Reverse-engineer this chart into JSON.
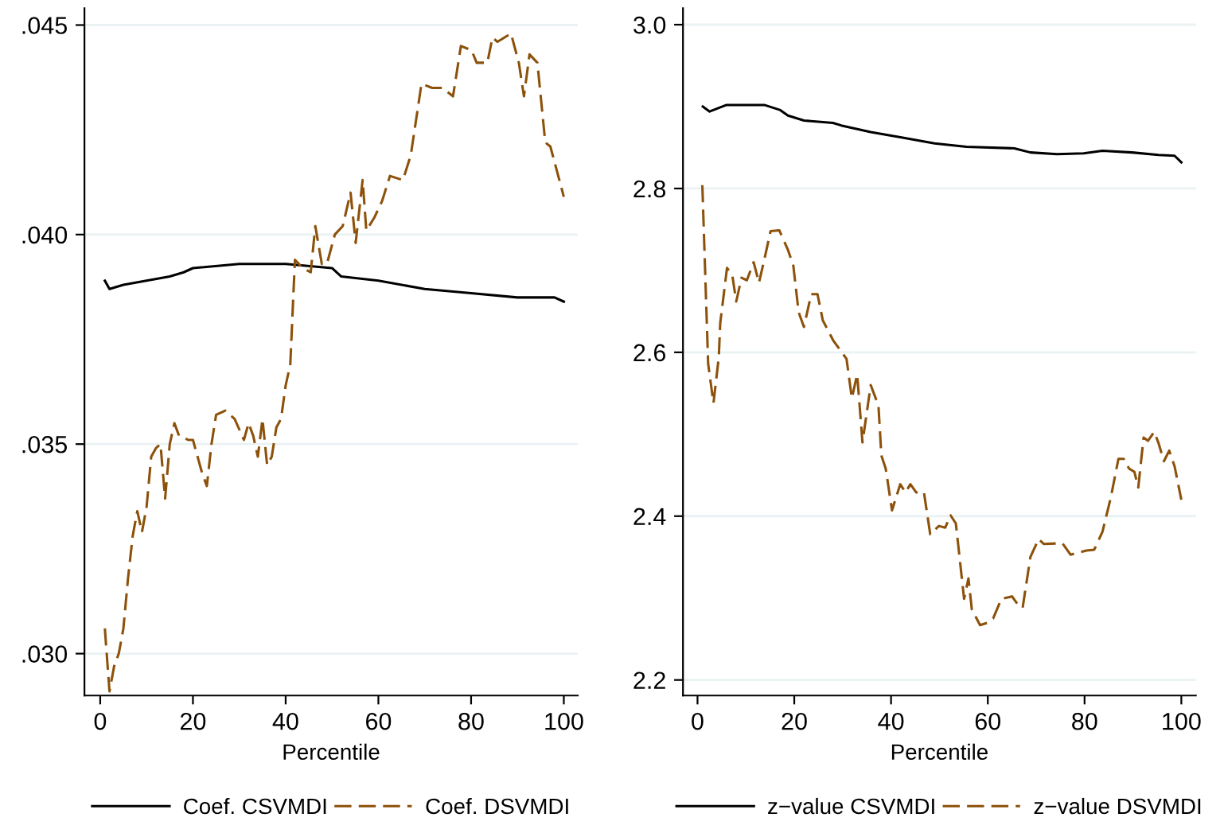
{
  "chart_data": [
    {
      "type": "line",
      "xlabel": "Percentile",
      "xlim": [
        -3.4,
        103
      ],
      "xticks": [
        0,
        20,
        40,
        60,
        80,
        100
      ],
      "ylim": [
        0.029,
        0.0454
      ],
      "yticks": [
        {
          "value": 0.03,
          "label": ".030"
        },
        {
          "value": 0.035,
          "label": ".035"
        },
        {
          "value": 0.04,
          "label": ".040"
        },
        {
          "value": 0.045,
          "label": ".045"
        }
      ],
      "grid": "y",
      "legend": "bottom",
      "series": [
        {
          "name": "Coef. CSVMDI",
          "color": "#000000",
          "line_style": "solid",
          "x": [
            1,
            2,
            5,
            10,
            15,
            18,
            20,
            30,
            40,
            50,
            52,
            60,
            70,
            80,
            90,
            95,
            98,
            100
          ],
          "values": [
            0.0389,
            0.0387,
            0.0388,
            0.0389,
            0.039,
            0.0391,
            0.0392,
            0.0393,
            0.0393,
            0.0392,
            0.039,
            0.0389,
            0.0387,
            0.0386,
            0.0385,
            0.0385,
            0.0385,
            0.0384
          ]
        },
        {
          "name": "Coef. DSVMDI",
          "color": "#8c510a",
          "line_style": "dashed",
          "x": [
            1,
            2,
            3,
            4,
            5,
            6,
            7,
            8,
            9,
            10,
            11,
            12,
            13,
            14,
            15,
            16,
            17,
            19,
            20,
            22,
            23,
            24,
            25,
            27,
            29,
            31,
            32,
            33,
            34,
            35,
            36,
            37,
            38,
            39,
            40,
            41,
            42,
            43.7,
            45.4,
            46.4,
            47.8,
            48.9,
            50.6,
            52.3,
            54,
            55.1,
            56.6,
            57.4,
            59.1,
            60.8,
            62.5,
            65.3,
            67,
            69.3,
            71.6,
            73.8,
            76.1,
            77.8,
            80.1,
            81.2,
            83.5,
            84.6,
            85.7,
            88.6,
            90.3,
            91.4,
            92.6,
            94.3,
            96,
            97.1,
            98.8,
            100
          ],
          "values": [
            0.0306,
            0.0291,
            0.0297,
            0.03,
            0.0306,
            0.0318,
            0.0328,
            0.0334,
            0.0329,
            0.0335,
            0.0347,
            0.0349,
            0.035,
            0.0337,
            0.035,
            0.0355,
            0.0352,
            0.0351,
            0.0351,
            0.0343,
            0.034,
            0.035,
            0.0357,
            0.0358,
            0.0356,
            0.0351,
            0.0355,
            0.0352,
            0.0347,
            0.0356,
            0.0345,
            0.0347,
            0.0354,
            0.0356,
            0.0364,
            0.0369,
            0.0394,
            0.0392,
            0.0391,
            0.0402,
            0.0393,
            0.0393,
            0.04,
            0.0402,
            0.041,
            0.0398,
            0.0413,
            0.0401,
            0.0404,
            0.0408,
            0.0414,
            0.0413,
            0.0419,
            0.0436,
            0.0435,
            0.0435,
            0.0433,
            0.0445,
            0.0444,
            0.0441,
            0.0441,
            0.0447,
            0.0446,
            0.0448,
            0.0441,
            0.0433,
            0.0443,
            0.0441,
            0.0422,
            0.0421,
            0.0414,
            0.0409
          ]
        }
      ]
    },
    {
      "type": "line",
      "xlabel": "Percentile",
      "xlim": [
        -3,
        103
      ],
      "xticks": [
        0,
        20,
        40,
        60,
        80,
        100
      ],
      "ylim": [
        2.181,
        3.02
      ],
      "yticks": [
        2.2,
        2.4,
        2.6,
        2.8,
        {
          "value": 3.0,
          "label": "3.0"
        }
      ],
      "grid": "y",
      "legend": "bottom",
      "series": [
        {
          "name": "z−value CSVMDI",
          "color": "#000000",
          "line_style": "solid",
          "x": [
            1.1,
            2.5,
            6,
            13.8,
            17,
            18.7,
            22,
            28,
            29.7,
            35.8,
            42.4,
            49,
            55.6,
            65.5,
            68.8,
            74.3,
            79.8,
            83.7,
            89.8,
            95.3,
            98.6,
            100
          ],
          "values": [
            2.9,
            2.894,
            2.902,
            2.902,
            2.896,
            2.889,
            2.883,
            2.88,
            2.877,
            2.869,
            2.862,
            2.855,
            2.851,
            2.849,
            2.844,
            2.842,
            2.843,
            2.846,
            2.844,
            2.841,
            2.84,
            2.832
          ]
        },
        {
          "name": "z−value DSVMDI",
          "color": "#8c510a",
          "line_style": "dashed",
          "x": [
            1,
            2.2,
            3.3,
            4.4,
            4.7,
            6.1,
            7.2,
            8,
            9.1,
            10.2,
            11.6,
            12.7,
            13.8,
            15.1,
            16.9,
            18.7,
            19.8,
            20.9,
            22,
            23.5,
            24.8,
            25.9,
            28.1,
            30.8,
            31.9,
            33,
            34.1,
            35.8,
            37.4,
            38,
            38.9,
            40.2,
            41.9,
            43,
            44,
            45.2,
            46.8,
            48.1,
            49.9,
            51.2,
            52.3,
            53.4,
            55.1,
            56,
            56.7,
            58.4,
            60,
            61.1,
            62.8,
            65,
            66.1,
            67.2,
            68.8,
            70.5,
            71.6,
            75.4,
            77.1,
            80.4,
            82,
            83.7,
            85.4,
            87,
            88.1,
            89.2,
            90.3,
            91.1,
            92.2,
            93.1,
            94.4,
            95.3,
            96.4,
            97.5,
            98.6,
            100
          ],
          "values": [
            2.804,
            2.586,
            2.538,
            2.594,
            2.636,
            2.703,
            2.694,
            2.662,
            2.691,
            2.688,
            2.71,
            2.685,
            2.713,
            2.748,
            2.749,
            2.725,
            2.706,
            2.649,
            2.631,
            2.671,
            2.671,
            2.639,
            2.614,
            2.592,
            2.544,
            2.573,
            2.49,
            2.56,
            2.535,
            2.474,
            2.458,
            2.407,
            2.439,
            2.429,
            2.439,
            2.429,
            2.429,
            2.378,
            2.388,
            2.386,
            2.401,
            2.391,
            2.299,
            2.324,
            2.286,
            2.267,
            2.27,
            2.275,
            2.299,
            2.302,
            2.293,
            2.288,
            2.35,
            2.372,
            2.366,
            2.367,
            2.353,
            2.358,
            2.359,
            2.381,
            2.422,
            2.47,
            2.47,
            2.458,
            2.454,
            2.435,
            2.496,
            2.492,
            2.503,
            2.489,
            2.467,
            2.48,
            2.461,
            2.42
          ]
        }
      ]
    }
  ]
}
